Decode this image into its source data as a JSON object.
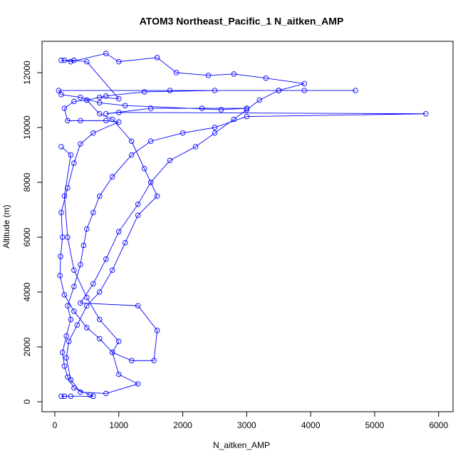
{
  "chart_data": {
    "type": "line",
    "points": true,
    "color": "#0000ff",
    "title": "ATOM3 Northeast_Pacific_1 N_aitken_AMP",
    "xlabel": "N_aitken_AMP",
    "ylabel": "Altitude (m)",
    "xlim": [
      -200,
      6225
    ],
    "ylim": [
      -364,
      13143
    ],
    "xticks": [
      0,
      1000,
      2000,
      3000,
      4000,
      5000,
      6000
    ],
    "yticks": [
      0,
      2000,
      4000,
      6000,
      8000,
      10000,
      12000
    ],
    "x": [
      100,
      150,
      250,
      600,
      550,
      300,
      200,
      150,
      120,
      180,
      250,
      200,
      300,
      400,
      450,
      500,
      600,
      700,
      900,
      1200,
      1500,
      2000,
      2500,
      3000,
      5800,
      1000,
      800,
      1500,
      2300,
      3000,
      2600,
      1100,
      700,
      400,
      100,
      60,
      1800,
      3500,
      4700,
      3900,
      2500,
      1400,
      800,
      500,
      300,
      150,
      200,
      400,
      800,
      1000,
      600,
      400,
      300,
      200,
      100,
      120,
      90,
      80,
      150,
      300,
      500,
      700,
      900,
      1000,
      1300,
      800,
      400,
      250,
      180,
      220,
      350,
      500,
      700,
      900,
      1100,
      1300,
      1600,
      1400,
      1200,
      900,
      700,
      500,
      700,
      1000,
      500,
      300,
      100,
      150,
      250,
      800,
      1000,
      1600,
      1900,
      2400,
      2800,
      3300,
      3900,
      3500,
      3200,
      3000,
      2800,
      2500,
      2200,
      1800,
      1500,
      1300,
      1000,
      800,
      600,
      400,
      1300,
      1600,
      1550,
      1200,
      900,
      1000,
      700,
      500,
      300,
      200,
      150,
      250,
      100
    ],
    "values": [
      200,
      200,
      200,
      200,
      250,
      500,
      900,
      1300,
      1800,
      2400,
      3000,
      3500,
      4200,
      5000,
      5700,
      6300,
      6900,
      7500,
      8200,
      9000,
      9500,
      9800,
      10000,
      10400,
      10500,
      10550,
      10500,
      10700,
      10700,
      10700,
      10650,
      10800,
      10900,
      11100,
      11200,
      11350,
      11350,
      11350,
      11350,
      11350,
      11350,
      11300,
      11150,
      11000,
      10950,
      10700,
      10250,
      10250,
      10250,
      10200,
      9800,
      9400,
      8700,
      7800,
      6900,
      6000,
      5300,
      4600,
      3900,
      3300,
      2700,
      2300,
      1800,
      1000,
      650,
      300,
      350,
      800,
      1600,
      2200,
      2800,
      3500,
      4000,
      4800,
      5800,
      6800,
      7500,
      8500,
      9500,
      10300,
      10500,
      11000,
      11100,
      11050,
      12400,
      12450,
      12450,
      12450,
      12400,
      12700,
      12400,
      12550,
      12000,
      11900,
      11950,
      11800,
      11600,
      11350,
      11000,
      10650,
      10300,
      9800,
      9300,
      8800,
      8000,
      7200,
      6200,
      5200,
      4300,
      3600,
      3500,
      2600,
      1500,
      1500,
      1800,
      2200,
      3000,
      3800,
      4800,
      6000,
      7500,
      9000,
      9300
    ]
  }
}
